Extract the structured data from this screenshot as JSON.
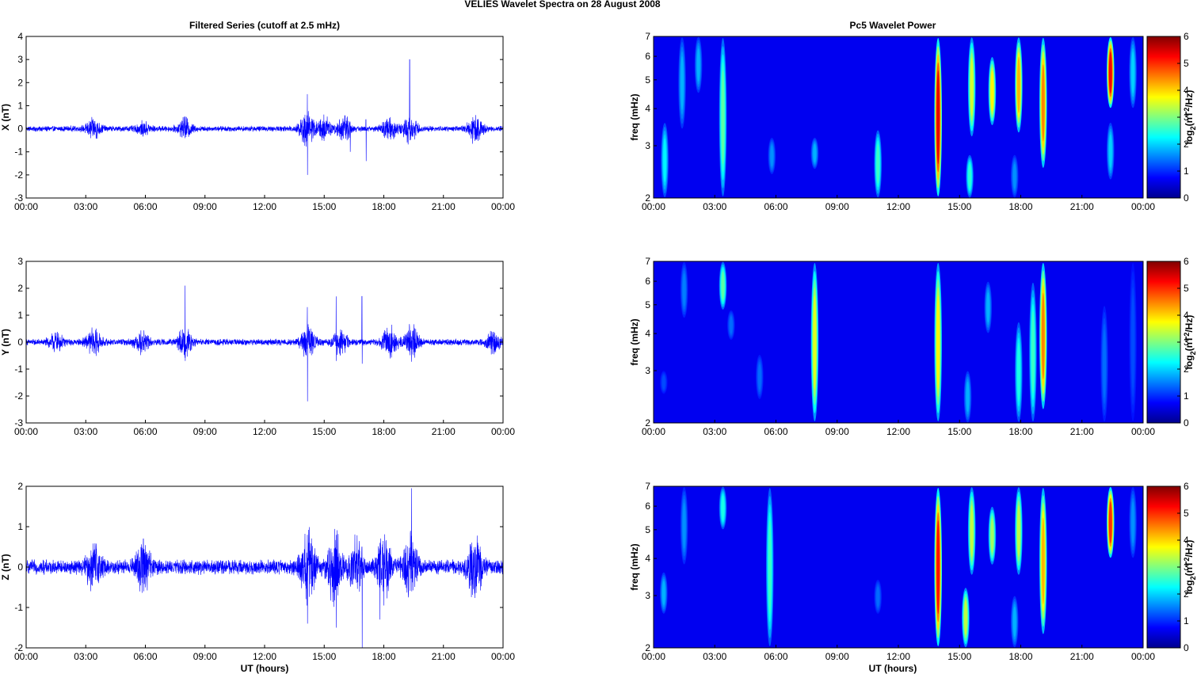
{
  "figure_title": "VELIES Wavelet Spectra on 28 August    2008",
  "left_title": "Filtered Series (cutoff at 2.5 mHz)",
  "right_title": "Pc5 Wavelet Power",
  "xlabel": "UT (hours)",
  "freq_label": "freq (mHz)",
  "cbar_label": "log2(nT2/Hz)",
  "time_ticks": [
    "00:00",
    "03:00",
    "06:00",
    "09:00",
    "12:00",
    "15:00",
    "18:00",
    "21:00",
    "00:00"
  ],
  "colors": {
    "trace": "#0000ff",
    "axis": "#000000"
  },
  "chart_data": [
    {
      "type": "line",
      "panel": "X",
      "ylabel": "X (nT)",
      "ylim": [
        -3,
        4
      ],
      "yticks": [
        -3,
        -2,
        -1,
        0,
        1,
        2,
        3,
        4
      ],
      "x_hours_range": [
        0,
        24
      ],
      "noise_amplitude": 0.1,
      "bursts": [
        {
          "t": 3.4,
          "amp": 0.35
        },
        {
          "t": 5.9,
          "amp": 0.2
        },
        {
          "t": 8.0,
          "amp": 0.35
        },
        {
          "t": 14.1,
          "amp": 0.6
        },
        {
          "t": 15.0,
          "amp": 0.4
        },
        {
          "t": 16.0,
          "amp": 0.45
        },
        {
          "t": 18.3,
          "amp": 0.4
        },
        {
          "t": 19.3,
          "amp": 0.45
        },
        {
          "t": 22.6,
          "amp": 0.5
        }
      ],
      "spikes": [
        {
          "t": 14.15,
          "max": 1.5,
          "min": -2.0
        },
        {
          "t": 16.3,
          "max": 0.3,
          "min": -1.0
        },
        {
          "t": 17.1,
          "max": 0.4,
          "min": -1.4
        },
        {
          "t": 19.3,
          "max": 3.0,
          "min": -0.5
        }
      ]
    },
    {
      "type": "line",
      "panel": "Y",
      "ylabel": "Y (nT)",
      "ylim": [
        -3,
        3
      ],
      "yticks": [
        -3,
        -2,
        -1,
        0,
        1,
        2,
        3
      ],
      "x_hours_range": [
        0,
        24
      ],
      "noise_amplitude": 0.1,
      "bursts": [
        {
          "t": 1.5,
          "amp": 0.25
        },
        {
          "t": 3.4,
          "amp": 0.35
        },
        {
          "t": 5.8,
          "amp": 0.3
        },
        {
          "t": 8.0,
          "amp": 0.4
        },
        {
          "t": 14.2,
          "amp": 0.5
        },
        {
          "t": 15.8,
          "amp": 0.35
        },
        {
          "t": 18.3,
          "amp": 0.45
        },
        {
          "t": 19.4,
          "amp": 0.5
        },
        {
          "t": 23.5,
          "amp": 0.3
        }
      ],
      "spikes": [
        {
          "t": 8.0,
          "max": 2.1,
          "min": -0.7
        },
        {
          "t": 14.15,
          "max": 1.3,
          "min": -2.2
        },
        {
          "t": 15.6,
          "max": 1.7,
          "min": -0.7
        },
        {
          "t": 16.9,
          "max": 1.7,
          "min": -0.8
        }
      ]
    },
    {
      "type": "line",
      "panel": "Z",
      "ylabel": "Z (nT)",
      "ylim": [
        -2,
        2
      ],
      "yticks": [
        -2,
        -1,
        0,
        1,
        2
      ],
      "x_hours_range": [
        0,
        24
      ],
      "noise_amplitude": 0.15,
      "bursts": [
        {
          "t": 3.4,
          "amp": 0.45
        },
        {
          "t": 5.9,
          "amp": 0.5
        },
        {
          "t": 14.2,
          "amp": 0.7
        },
        {
          "t": 15.5,
          "amp": 0.7
        },
        {
          "t": 16.6,
          "amp": 0.5
        },
        {
          "t": 18.0,
          "amp": 0.6
        },
        {
          "t": 19.3,
          "amp": 0.6
        },
        {
          "t": 22.6,
          "amp": 0.6
        }
      ],
      "spikes": [
        {
          "t": 5.9,
          "max": 0.7,
          "min": -0.6
        },
        {
          "t": 14.15,
          "max": 0.8,
          "min": -1.4
        },
        {
          "t": 15.6,
          "max": 0.8,
          "min": -1.5
        },
        {
          "t": 16.9,
          "max": 0.5,
          "min": -2.0
        },
        {
          "t": 17.8,
          "max": 0.6,
          "min": -1.3
        },
        {
          "t": 19.4,
          "max": 1.95,
          "min": -0.6
        }
      ]
    },
    {
      "type": "heatmap",
      "panel": "X",
      "yscale": "log",
      "ylim_mHz": [
        2,
        7
      ],
      "yticks": [
        2,
        3,
        4,
        5,
        6,
        7
      ],
      "clim": [
        0,
        6
      ],
      "cticks": [
        0,
        1,
        2,
        3,
        4,
        5,
        6
      ],
      "colormap": "jet",
      "blobs": [
        {
          "t": 0.55,
          "f1": 2.0,
          "f2": 3.6,
          "peak": 2.2
        },
        {
          "t": 1.4,
          "f1": 3.4,
          "f2": 7.0,
          "peak": 1.8
        },
        {
          "t": 2.2,
          "f1": 4.5,
          "f2": 7.0,
          "peak": 1.8
        },
        {
          "t": 3.4,
          "f1": 2.0,
          "f2": 7.0,
          "peak": 2.8
        },
        {
          "t": 5.8,
          "f1": 2.4,
          "f2": 3.2,
          "peak": 1.6
        },
        {
          "t": 7.9,
          "f1": 2.5,
          "f2": 3.2,
          "peak": 1.8
        },
        {
          "t": 11.0,
          "f1": 2.0,
          "f2": 3.4,
          "peak": 2.6
        },
        {
          "t": 13.95,
          "f1": 2.0,
          "f2": 7.0,
          "peak": 5.4
        },
        {
          "t": 15.5,
          "f1": 2.0,
          "f2": 2.8,
          "peak": 2.5
        },
        {
          "t": 15.6,
          "f1": 3.2,
          "f2": 7.0,
          "peak": 3.5
        },
        {
          "t": 16.6,
          "f1": 3.5,
          "f2": 6.0,
          "peak": 3.8
        },
        {
          "t": 17.7,
          "f1": 2.0,
          "f2": 2.8,
          "peak": 1.6
        },
        {
          "t": 17.9,
          "f1": 3.3,
          "f2": 7.0,
          "peak": 4.2
        },
        {
          "t": 19.1,
          "f1": 2.5,
          "f2": 7.0,
          "peak": 4.5
        },
        {
          "t": 22.4,
          "f1": 2.3,
          "f2": 3.6,
          "peak": 2.0
        },
        {
          "t": 22.4,
          "f1": 4.0,
          "f2": 7.0,
          "peak": 5.3
        },
        {
          "t": 23.5,
          "f1": 4.0,
          "f2": 7.0,
          "peak": 2.0
        }
      ]
    },
    {
      "type": "heatmap",
      "panel": "Y",
      "yscale": "log",
      "ylim_mHz": [
        2,
        7
      ],
      "yticks": [
        2,
        3,
        4,
        5,
        6,
        7
      ],
      "clim": [
        0,
        6
      ],
      "cticks": [
        0,
        1,
        2,
        3,
        4,
        5,
        6
      ],
      "colormap": "jet",
      "blobs": [
        {
          "t": 0.5,
          "f1": 2.5,
          "f2": 3.0,
          "peak": 1.2
        },
        {
          "t": 1.5,
          "f1": 4.5,
          "f2": 7.0,
          "peak": 1.5
        },
        {
          "t": 3.4,
          "f1": 4.8,
          "f2": 7.0,
          "peak": 2.8
        },
        {
          "t": 3.8,
          "f1": 3.8,
          "f2": 4.8,
          "peak": 1.4
        },
        {
          "t": 5.2,
          "f1": 2.4,
          "f2": 3.4,
          "peak": 1.4
        },
        {
          "t": 7.9,
          "f1": 2.0,
          "f2": 7.0,
          "peak": 3.6
        },
        {
          "t": 13.95,
          "f1": 2.0,
          "f2": 7.0,
          "peak": 3.8
        },
        {
          "t": 15.4,
          "f1": 2.0,
          "f2": 3.0,
          "peak": 1.8
        },
        {
          "t": 16.4,
          "f1": 4.0,
          "f2": 6.0,
          "peak": 1.8
        },
        {
          "t": 17.9,
          "f1": 2.0,
          "f2": 4.4,
          "peak": 2.4
        },
        {
          "t": 18.6,
          "f1": 2.0,
          "f2": 6.0,
          "peak": 2.6
        },
        {
          "t": 19.1,
          "f1": 2.2,
          "f2": 7.0,
          "peak": 4.5
        },
        {
          "t": 22.1,
          "f1": 2.0,
          "f2": 5.0,
          "peak": 1.4
        },
        {
          "t": 23.5,
          "f1": 2.0,
          "f2": 7.0,
          "peak": 1.2
        }
      ]
    },
    {
      "type": "heatmap",
      "panel": "Z",
      "yscale": "log",
      "ylim_mHz": [
        2,
        7
      ],
      "yticks": [
        2,
        3,
        4,
        5,
        6,
        7
      ],
      "clim": [
        0,
        6
      ],
      "cticks": [
        0,
        1,
        2,
        3,
        4,
        5,
        6
      ],
      "colormap": "jet",
      "blobs": [
        {
          "t": 0.5,
          "f1": 2.6,
          "f2": 3.6,
          "peak": 1.8
        },
        {
          "t": 1.5,
          "f1": 3.8,
          "f2": 7.0,
          "peak": 1.6
        },
        {
          "t": 3.4,
          "f1": 5.0,
          "f2": 7.0,
          "peak": 2.4
        },
        {
          "t": 5.7,
          "f1": 2.0,
          "f2": 7.0,
          "peak": 2.6
        },
        {
          "t": 11.0,
          "f1": 2.6,
          "f2": 3.4,
          "peak": 1.4
        },
        {
          "t": 13.95,
          "f1": 2.0,
          "f2": 7.0,
          "peak": 5.2
        },
        {
          "t": 15.3,
          "f1": 2.0,
          "f2": 3.2,
          "peak": 3.4
        },
        {
          "t": 15.6,
          "f1": 3.5,
          "f2": 7.0,
          "peak": 3.4
        },
        {
          "t": 16.6,
          "f1": 3.8,
          "f2": 6.0,
          "peak": 3.2
        },
        {
          "t": 17.7,
          "f1": 2.0,
          "f2": 3.0,
          "peak": 1.8
        },
        {
          "t": 17.9,
          "f1": 3.5,
          "f2": 7.0,
          "peak": 3.4
        },
        {
          "t": 19.1,
          "f1": 2.2,
          "f2": 7.0,
          "peak": 4.2
        },
        {
          "t": 22.4,
          "f1": 4.0,
          "f2": 7.0,
          "peak": 5.0
        },
        {
          "t": 23.5,
          "f1": 4.0,
          "f2": 7.0,
          "peak": 1.6
        }
      ]
    }
  ]
}
